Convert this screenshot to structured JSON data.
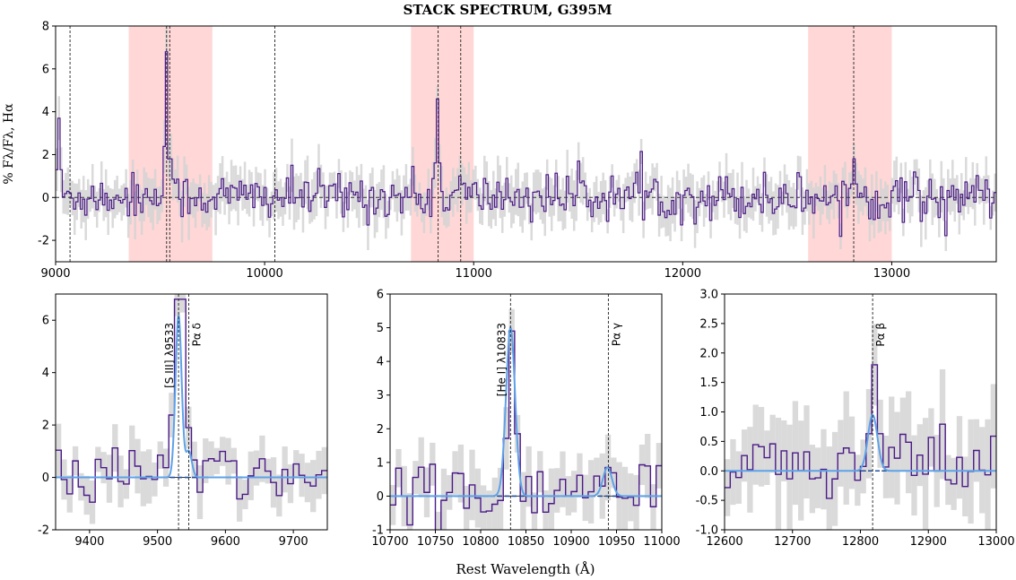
{
  "chart_data": [
    {
      "panel": "top",
      "type": "line",
      "title": "STACK SPECTRUM, G395M",
      "ylabel": "% Fλ/Fλ, Hα",
      "xlim": [
        9000,
        13500
      ],
      "ylim": [
        -3,
        8
      ],
      "xticks": [
        9000,
        10000,
        11000,
        12000,
        13000
      ],
      "yticks": [
        -2,
        0,
        2,
        4,
        6,
        8
      ],
      "shaded_regions": [
        [
          9350,
          9750
        ],
        [
          10700,
          11000
        ],
        [
          12600,
          13000
        ]
      ],
      "line_markers": [
        9069,
        9531,
        9546,
        10049,
        10830,
        10938,
        12818
      ],
      "emission_peaks": [
        {
          "x": 9531,
          "y": 6.8
        },
        {
          "x": 9546,
          "y": 1.8
        },
        {
          "x": 10830,
          "y": 4.6
        },
        {
          "x": 10938,
          "y": 1.0
        },
        {
          "x": 12818,
          "y": 1.8
        },
        {
          "x": 9020,
          "y": 3.7
        }
      ],
      "series": [
        {
          "name": "stack flux",
          "color": "#4b1a87"
        },
        {
          "name": "uncertainty",
          "color": "#d3d3d3"
        }
      ]
    },
    {
      "panel": "zoom-1",
      "type": "line",
      "xlim": [
        9350,
        9750
      ],
      "ylim": [
        -2,
        7
      ],
      "xticks": [
        9400,
        9500,
        9600,
        9700
      ],
      "yticks": [
        -2,
        0,
        2,
        4,
        6
      ],
      "line_markers": [
        9531,
        9546
      ],
      "annotations": [
        "[S III] λ9533",
        "Pα δ"
      ],
      "gaussian_fit": [
        {
          "center": 9531,
          "amp": 6.2,
          "sigma": 4.5
        },
        {
          "center": 9546,
          "amp": 1.0,
          "sigma": 4.5
        }
      ],
      "emission_peaks": [
        {
          "x": 9533,
          "y": 6.8
        },
        {
          "x": 9548,
          "y": 1.9
        }
      ],
      "series": [
        {
          "name": "stack flux",
          "color": "#4b1a87"
        },
        {
          "name": "gaussian fit",
          "color": "#5ea2e8"
        },
        {
          "name": "continuum",
          "color": "#1f4fa0"
        }
      ]
    },
    {
      "panel": "zoom-2",
      "type": "line",
      "xlim": [
        10700,
        11000
      ],
      "ylim": [
        -1,
        6
      ],
      "xticks": [
        10700,
        10750,
        10800,
        10850,
        10900,
        10950,
        11000
      ],
      "yticks": [
        -1,
        0,
        1,
        2,
        3,
        4,
        5,
        6
      ],
      "line_markers": [
        10833,
        10941
      ],
      "annotations": [
        "[He I] λ10833",
        "Pα γ"
      ],
      "gaussian_fit": [
        {
          "center": 10833,
          "amp": 5.0,
          "sigma": 5
        },
        {
          "center": 10940,
          "amp": 0.85,
          "sigma": 5
        }
      ],
      "emission_peaks": [
        {
          "x": 10833,
          "y": 4.9
        },
        {
          "x": 10941,
          "y": 0.85
        }
      ],
      "series": [
        {
          "name": "stack flux",
          "color": "#4b1a87"
        },
        {
          "name": "gaussian fit",
          "color": "#5ea2e8"
        },
        {
          "name": "continuum",
          "color": "#1f4fa0"
        }
      ]
    },
    {
      "panel": "zoom-3",
      "type": "line",
      "xlim": [
        12600,
        13000
      ],
      "ylim": [
        -1.0,
        3.0
      ],
      "xticks": [
        12600,
        12700,
        12800,
        12900,
        13000
      ],
      "yticks": [
        -1.0,
        -0.5,
        0.0,
        0.5,
        1.0,
        1.5,
        2.0,
        2.5,
        3.0
      ],
      "line_markers": [
        12818
      ],
      "annotations": [
        "Pα β"
      ],
      "gaussian_fit": [
        {
          "center": 12818,
          "amp": 0.95,
          "sigma": 7
        }
      ],
      "emission_peaks": [
        {
          "x": 12820,
          "y": 1.8
        }
      ],
      "series": [
        {
          "name": "stack flux",
          "color": "#4b1a87"
        },
        {
          "name": "gaussian fit",
          "color": "#5ea2e8"
        },
        {
          "name": "continuum",
          "color": "#1f4fa0"
        }
      ]
    }
  ],
  "figure": {
    "xlabel": "Rest Wavelength (Å)"
  }
}
